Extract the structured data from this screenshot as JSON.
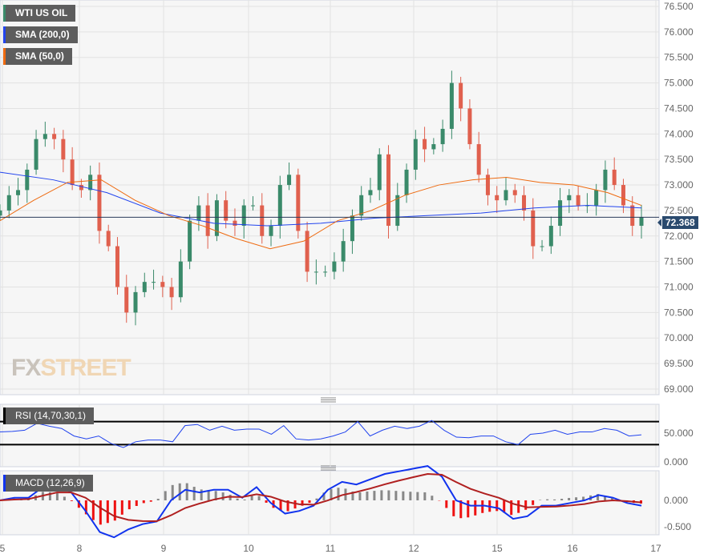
{
  "chart_data": [
    {
      "type": "candlestick",
      "title": "WTI US OIL",
      "legend": [
        "WTI US OIL",
        "SMA (200,0)",
        "SMA (50,0)"
      ],
      "yticks": [
        76.5,
        76.0,
        75.5,
        75.0,
        74.5,
        74.0,
        73.5,
        73.0,
        72.5,
        72.0,
        71.5,
        71.0,
        70.5,
        70.0,
        69.5,
        69.0
      ],
      "ylim": [
        69.0,
        76.5
      ],
      "xticks": [
        "5",
        "8",
        "9",
        "10",
        "11",
        "12",
        "15",
        "16",
        "17"
      ],
      "last_price": "72.368",
      "closes": [
        72.5,
        72.8,
        72.9,
        73.3,
        73.9,
        74.0,
        73.9,
        73.5,
        73.0,
        72.9,
        73.2,
        72.1,
        71.8,
        71.0,
        70.5,
        70.9,
        71.1,
        71.1,
        71.0,
        70.8,
        71.5,
        72.3,
        72.6,
        72.0,
        72.7,
        72.3,
        72.2,
        72.6,
        72.6,
        72.0,
        72.2,
        73.0,
        73.2,
        72.1,
        71.3,
        71.3,
        71.3,
        71.5,
        71.9,
        72.4,
        72.8,
        72.9,
        73.6,
        72.2,
        72.8,
        73.3,
        73.9,
        73.7,
        73.8,
        74.1,
        75.0,
        74.5,
        73.8,
        73.2,
        72.8,
        72.7,
        72.9,
        72.8,
        72.5,
        71.8,
        71.8,
        72.2,
        72.7,
        72.8,
        72.6,
        72.6,
        72.9,
        73.3,
        73.0,
        72.6,
        72.2,
        72.37
      ],
      "sma200": [
        73.25,
        73.1,
        72.85,
        72.45,
        72.25,
        72.2,
        72.25,
        72.35,
        72.4,
        72.45,
        72.55,
        72.6,
        72.55
      ],
      "sma50": [
        72.3,
        72.7,
        73.05,
        73.1,
        72.7,
        72.4,
        72.2,
        71.95,
        71.75,
        71.9,
        72.3,
        72.5,
        72.8,
        73.0,
        73.1,
        73.15,
        73.05,
        73.0,
        72.85,
        72.6
      ]
    },
    {
      "type": "line",
      "title": "RSI (14,70,30,1)",
      "yticks": [
        "50.000",
        "0.000"
      ],
      "levels": [
        70,
        30
      ],
      "values": [
        52,
        53,
        55,
        67,
        62,
        58,
        45,
        40,
        45,
        32,
        25,
        35,
        38,
        38,
        35,
        63,
        65,
        55,
        62,
        55,
        57,
        57,
        48,
        63,
        40,
        38,
        40,
        45,
        52,
        70,
        45,
        55,
        62,
        58,
        62,
        72,
        55,
        43,
        42,
        45,
        45,
        35,
        30,
        48,
        50,
        55,
        48,
        52,
        52,
        58,
        55,
        45,
        47
      ]
    },
    {
      "type": "line",
      "title": "MACD (12,26,9)",
      "yticks": [
        "0.000",
        "-0.500"
      ],
      "macd": [
        0,
        0.05,
        0.05,
        0.25,
        0.3,
        0.15,
        -0.2,
        -0.6,
        -0.7,
        -0.55,
        -0.45,
        -0.4,
        0,
        0.2,
        0.15,
        0.2,
        0.2,
        0.05,
        0.25,
        -0.05,
        -0.25,
        -0.2,
        -0.1,
        0.2,
        0.35,
        0.3,
        0.4,
        0.5,
        0.55,
        0.6,
        0.65,
        0.45,
        0,
        -0.1,
        -0.1,
        -0.15,
        -0.35,
        -0.3,
        -0.1,
        -0.1,
        -0.05,
        0.0,
        0.1,
        0.05,
        -0.05,
        -0.1
      ]
    }
  ],
  "labels": {
    "main": "WTI US OIL",
    "sma200": "SMA (200,0)",
    "sma50": "SMA (50,0)",
    "rsi": "RSI (14,70,30,1)",
    "macd": "MACD (12,26,9)"
  },
  "watermark": {
    "a": "FX",
    "b": "STREET"
  },
  "colors": {
    "up": "#3a8a6a",
    "down": "#e0604e",
    "sma200": "#2244ee",
    "sma50": "#ee6a10",
    "rsi": "#2244ee",
    "macd": "#1133ee",
    "signal": "#b02020"
  }
}
